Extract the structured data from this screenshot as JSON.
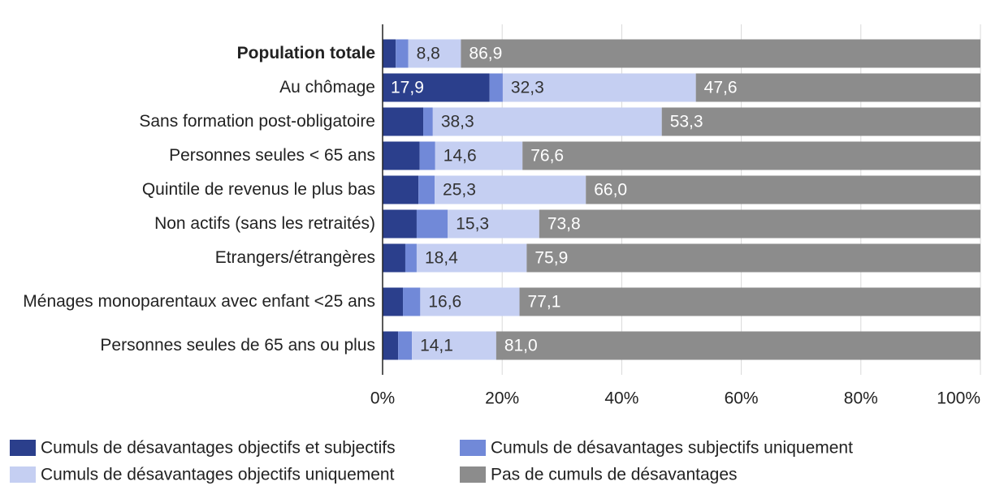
{
  "chart_data": {
    "type": "stacked-bar-horizontal",
    "categories": [
      "Population totale",
      "Au chômage",
      "Sans formation post-obligatoire",
      "Personnes seules < 65 ans",
      "Quintile de revenus le plus bas",
      "Non actifs (sans les retraités)",
      "Etrangers/étrangères",
      "Ménages monoparentaux avec enfant <25 ans",
      "Personnes seules de 65 ans ou plus"
    ],
    "series": [
      {
        "name": "Cumuls de désavantages objectifs et subjectifs",
        "color": "#2b3f8c",
        "values": [
          2.2,
          17.9,
          6.8,
          6.2,
          6.0,
          5.7,
          3.8,
          3.4,
          2.6
        ],
        "value_labels": [
          null,
          "17,9",
          null,
          null,
          null,
          null,
          null,
          null,
          null
        ]
      },
      {
        "name": "Cumuls de désavantages subjectifs uniquement",
        "color": "#7189d8",
        "values": [
          2.1,
          2.2,
          1.6,
          2.6,
          2.7,
          5.2,
          1.9,
          2.9,
          2.3
        ]
      },
      {
        "name": "Cumuls de désavantages objectifs uniquement",
        "color": "#c5cff2",
        "values": [
          8.8,
          32.3,
          38.3,
          14.6,
          25.3,
          15.3,
          18.4,
          16.6,
          14.1
        ],
        "value_labels": [
          "8,8",
          "32,3",
          "38,3",
          "14,6",
          "25,3",
          "15,3",
          "18,4",
          "16,6",
          "14,1"
        ]
      },
      {
        "name": "Pas de cumuls de désavantages",
        "color": "#8c8c8c",
        "values": [
          86.9,
          47.6,
          53.3,
          76.6,
          66.0,
          73.8,
          75.9,
          77.1,
          81.0
        ],
        "value_labels": [
          "86,9",
          "47,6",
          "53,3",
          "76,6",
          "66,0",
          "73,8",
          "75,9",
          "77,1",
          "81,0"
        ]
      }
    ],
    "xlim": [
      0,
      100
    ],
    "xticks": [
      {
        "value": 0,
        "label": "0%"
      },
      {
        "value": 20,
        "label": "20%"
      },
      {
        "value": 40,
        "label": "40%"
      },
      {
        "value": 60,
        "label": "60%"
      },
      {
        "value": 80,
        "label": "80%"
      },
      {
        "value": 100,
        "label": "100%"
      }
    ],
    "grid": true
  }
}
